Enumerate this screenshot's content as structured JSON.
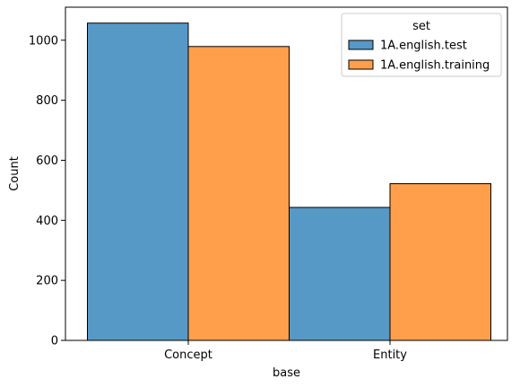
{
  "chart_data": {
    "type": "bar",
    "title": "",
    "xlabel": "base",
    "ylabel": "Count",
    "categories": [
      "Concept",
      "Entity"
    ],
    "series": [
      {
        "name": "1A.english.test",
        "values": [
          1057,
          443
        ],
        "color": "#5799c6"
      },
      {
        "name": "1A.english.training",
        "values": [
          979,
          522
        ],
        "color": "#ff9f4b"
      }
    ],
    "ylim": [
      0,
      1110
    ],
    "yticks": [
      0,
      200,
      400,
      600,
      800,
      1000
    ],
    "grid": false,
    "legend": {
      "title": "set",
      "placement": "top-right"
    }
  }
}
